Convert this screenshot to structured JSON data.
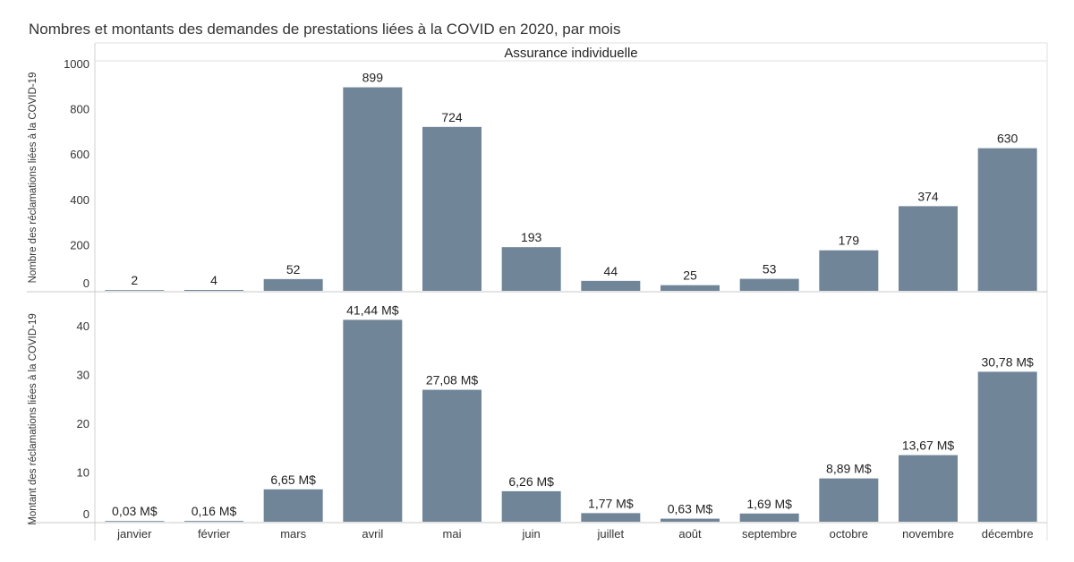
{
  "chart_data": {
    "type": "bar",
    "title": "Nombres et montants des demandes de prestations liées à la COVID en 2020, par mois",
    "panel_header": "Assurance individuelle",
    "categories": [
      "janvier",
      "février",
      "mars",
      "avril",
      "mai",
      "juin",
      "juillet",
      "août",
      "septembre",
      "octobre",
      "novembre",
      "décembre"
    ],
    "panels": [
      {
        "ylabel": "Nombre des réclamations liées à la COVID-19",
        "ylim": [
          0,
          1000
        ],
        "yticks": [
          "0",
          "200",
          "400",
          "600",
          "800",
          "1000"
        ],
        "values": [
          2,
          4,
          52,
          899,
          724,
          193,
          44,
          25,
          53,
          179,
          374,
          630
        ],
        "value_labels": [
          "2",
          "4",
          "52",
          "899",
          "724",
          "193",
          "44",
          "25",
          "53",
          "179",
          "374",
          "630"
        ]
      },
      {
        "ylabel": "Montant des réclamations liées à la COVID-19",
        "ylim": [
          0,
          45
        ],
        "yticks": [
          "0",
          "10",
          "20",
          "30",
          "40"
        ],
        "values": [
          0.03,
          0.16,
          6.65,
          41.44,
          27.08,
          6.26,
          1.77,
          0.63,
          1.69,
          8.89,
          13.67,
          30.78
        ],
        "value_labels": [
          "0,03 M$",
          "0,16 M$",
          "6,65 M$",
          "41,44 M$",
          "27,08 M$",
          "6,26 M$",
          "1,77 M$",
          "0,63 M$",
          "1,69 M$",
          "8,89 M$",
          "13,67 M$",
          "30,78 M$"
        ]
      }
    ],
    "bar_color": "#718599",
    "grid": false
  }
}
